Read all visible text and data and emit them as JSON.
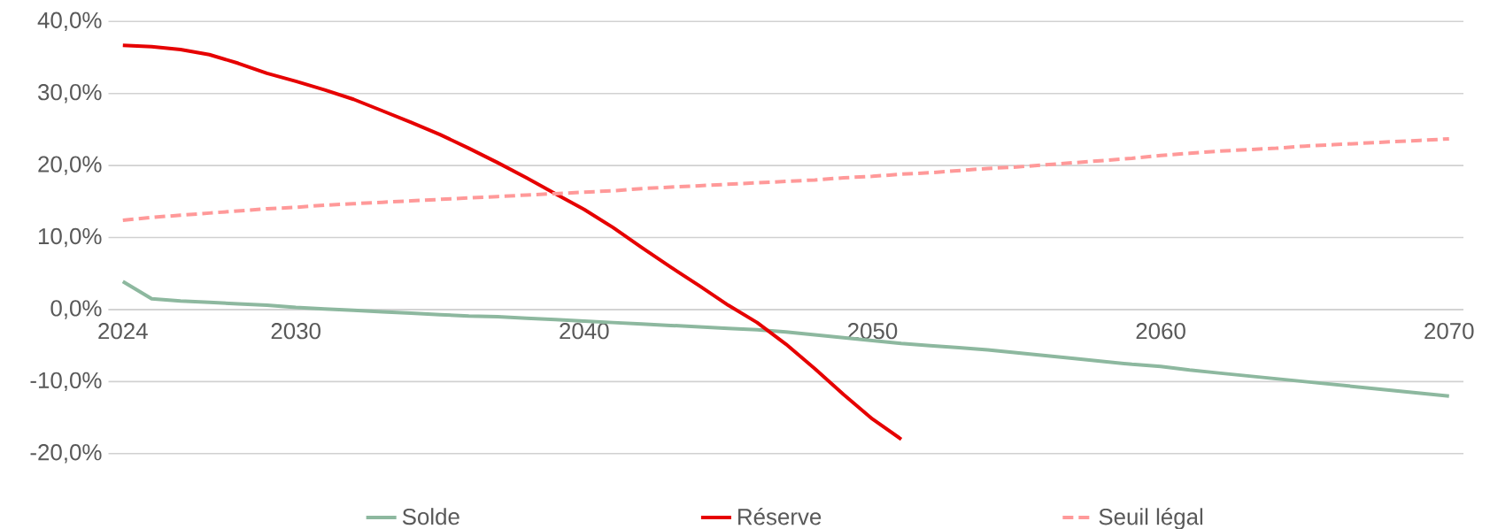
{
  "chart_data": {
    "type": "line",
    "x": [
      2024,
      2025,
      2026,
      2027,
      2028,
      2029,
      2030,
      2031,
      2032,
      2033,
      2034,
      2035,
      2036,
      2037,
      2038,
      2039,
      2040,
      2041,
      2042,
      2043,
      2044,
      2045,
      2046,
      2047,
      2048,
      2049,
      2050,
      2051,
      2052,
      2053,
      2054,
      2055,
      2056,
      2057,
      2058,
      2059,
      2060,
      2061,
      2062,
      2063,
      2064,
      2065,
      2066,
      2067,
      2068,
      2069,
      2070
    ],
    "series": [
      {
        "name": "Solde",
        "color": "#8db89f",
        "line_style": "solid",
        "values": [
          3.9,
          1.5,
          1.2,
          1.0,
          0.8,
          0.6,
          0.3,
          0.1,
          -0.1,
          -0.3,
          -0.5,
          -0.7,
          -0.9,
          -1.0,
          -1.2,
          -1.4,
          -1.6,
          -1.8,
          -2.0,
          -2.2,
          -2.4,
          -2.6,
          -2.8,
          -3.1,
          -3.5,
          -3.9,
          -4.3,
          -4.7,
          -5.0,
          -5.3,
          -5.6,
          -6.0,
          -6.4,
          -6.8,
          -7.2,
          -7.6,
          -7.9,
          -8.4,
          -8.8,
          -9.2,
          -9.6,
          -10.0,
          -10.4,
          -10.8,
          -11.2,
          -11.6,
          -12.0
        ]
      },
      {
        "name": "Réserve",
        "color": "#e60000",
        "line_style": "solid",
        "values": [
          36.7,
          36.5,
          36.1,
          35.4,
          34.2,
          32.8,
          31.7,
          30.5,
          29.2,
          27.6,
          26.0,
          24.3,
          22.4,
          20.4,
          18.3,
          16.1,
          13.9,
          11.4,
          8.6,
          5.9,
          3.3,
          0.6,
          -1.8,
          -4.8,
          -8.2,
          -11.8,
          -15.2,
          -18.0,
          null,
          null,
          null,
          null,
          null,
          null,
          null,
          null,
          null,
          null,
          null,
          null,
          null,
          null,
          null,
          null,
          null,
          null,
          null
        ]
      },
      {
        "name": "Seuil légal",
        "color": "#ff9999",
        "line_style": "dashed",
        "values": [
          12.4,
          12.8,
          13.1,
          13.4,
          13.7,
          14.0,
          14.2,
          14.5,
          14.7,
          14.9,
          15.1,
          15.3,
          15.5,
          15.7,
          15.9,
          16.1,
          16.3,
          16.5,
          16.8,
          17.0,
          17.2,
          17.4,
          17.6,
          17.8,
          18.0,
          18.3,
          18.5,
          18.8,
          19.0,
          19.3,
          19.6,
          19.8,
          20.1,
          20.4,
          20.7,
          21.0,
          21.4,
          21.7,
          22.0,
          22.2,
          22.4,
          22.7,
          22.9,
          23.1,
          23.3,
          23.5,
          23.7
        ]
      }
    ],
    "xlim": [
      2023.5,
      2070.5
    ],
    "xticks": [
      2024,
      2030,
      2040,
      2050,
      2060,
      2070
    ],
    "ylim": [
      -20,
      40
    ],
    "yticks": [
      {
        "value": -20,
        "label": "-20,0%"
      },
      {
        "value": -10,
        "label": "-10,0%"
      },
      {
        "value": 0,
        "label": "0,0%"
      },
      {
        "value": 10,
        "label": "10,0%"
      },
      {
        "value": 20,
        "label": "20,0%"
      },
      {
        "value": 30,
        "label": "30,0%"
      },
      {
        "value": 40,
        "label": "40,0%"
      }
    ],
    "grid": "y",
    "legend": "bottom"
  }
}
